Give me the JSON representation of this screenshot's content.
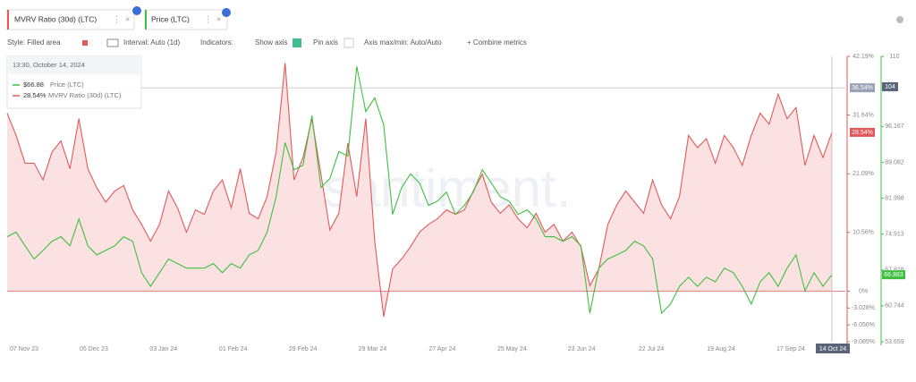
{
  "toolbar": {
    "style": "Style: Filled area",
    "interval": "Interval: Auto (1d)",
    "indicators": "Indicators:",
    "show_axis": "Show axis",
    "pin_axis": "Pin axis",
    "axis_minmax": "Axis max/min: Auto/Auto",
    "combine": "+ Combine metrics"
  },
  "watermark": "santiment.",
  "chart_data": {
    "type": "line",
    "series": [
      {
        "name": "MVRV Ratio (30d) (LTC)",
        "color": "#e05a5a",
        "fill": "#fbe1e1",
        "axis": "y",
        "last_label": "28.54%",
        "values": [
          32,
          28,
          23,
          23,
          20,
          25,
          27,
          22,
          31,
          22,
          18.6,
          16,
          18,
          19,
          14.6,
          12,
          9,
          12,
          18,
          15,
          10.6,
          14.6,
          13.8,
          18,
          20,
          15,
          22,
          14,
          13,
          17,
          25,
          41,
          20,
          24,
          31,
          21,
          11,
          14,
          26.6,
          17,
          31,
          9,
          -4.6,
          4,
          5.8,
          8,
          10.6,
          12,
          13,
          14.6,
          13.8,
          14.6,
          18,
          21,
          16,
          14,
          15.5,
          13,
          11.4,
          14,
          10.6,
          12,
          9,
          10.6,
          8,
          1,
          4,
          12,
          15.5,
          18,
          16,
          14,
          20,
          15.5,
          13,
          17,
          28,
          25.8,
          27.4,
          23,
          28,
          25.8,
          22.6,
          28,
          32,
          30,
          35.4,
          31,
          33,
          22.6,
          28,
          24,
          28.54
        ]
      },
      {
        "name": "Price (LTC)",
        "color": "#3fbf3f",
        "axis": "y2",
        "last_label": 66.883,
        "values": [
          74.4,
          75.3,
          72.6,
          70,
          71.7,
          73.5,
          74.4,
          72.6,
          77.9,
          72.6,
          70.8,
          71.7,
          72.6,
          74.4,
          73.5,
          67.3,
          64.6,
          67.3,
          70,
          69.1,
          68.2,
          68.2,
          68.2,
          69.1,
          67.3,
          69.1,
          68.2,
          70.8,
          71.7,
          75.3,
          82.3,
          93,
          87.6,
          88.5,
          98.3,
          84.1,
          85.9,
          91.2,
          90.3,
          108,
          99.1,
          101.8,
          96.5,
          78.8,
          84.1,
          86.8,
          85,
          80.6,
          81.4,
          83.2,
          78.8,
          80.6,
          83.2,
          87.6,
          85,
          82.3,
          81.4,
          78.8,
          79.7,
          77.9,
          74.4,
          74.4,
          73.5,
          74.4,
          72.6,
          59.3,
          68.2,
          70,
          70.8,
          71.7,
          73.5,
          72.6,
          70,
          59.3,
          61.1,
          64.6,
          66.4,
          64.6,
          66.4,
          65.5,
          68.2,
          67.3,
          64.6,
          61.1,
          65.5,
          67.3,
          64.6,
          68.2,
          70.8,
          63.7,
          67.3,
          64.6,
          66.883
        ]
      }
    ],
    "ylim": [
      -9.085,
      42.19
    ],
    "yticks": [
      {
        "value": -9.085,
        "label": "-9.085%"
      },
      {
        "value": -6.056,
        "label": "-6.056%"
      },
      {
        "value": -3.028,
        "label": "-3.028%"
      },
      {
        "value": 0,
        "label": "0%"
      },
      {
        "value": 10.56,
        "label": "10.56%"
      },
      {
        "value": 21.09,
        "label": "21.09%"
      },
      {
        "value": 31.64,
        "label": "31.64%"
      },
      {
        "value": 42.19,
        "label": "42.19%"
      }
    ],
    "y2lim": [
      53.659,
      110
    ],
    "y2ticks": [
      53.659,
      60.744,
      67.828,
      74.913,
      81.998,
      89.082,
      96.167,
      110
    ],
    "x_labels": [
      "07 Nov 23",
      "05 Dec 23",
      "03 Jan 24",
      "01 Feb 24",
      "29 Feb 24",
      "29 Mar 24",
      "27 Apr 24",
      "25 May 24",
      "23 Jun 24",
      "22 Jul 24",
      "19 Aug 24",
      "17 Sep 24"
    ],
    "crosshair": {
      "x_label": "14 Oct 24",
      "y": {
        "value": 36.54,
        "label": "36.54%"
      },
      "y2": 104
    },
    "tooltip": {
      "title": "13:30, October 14, 2024",
      "items": [
        "$66.88",
        "28.54%"
      ]
    }
  }
}
